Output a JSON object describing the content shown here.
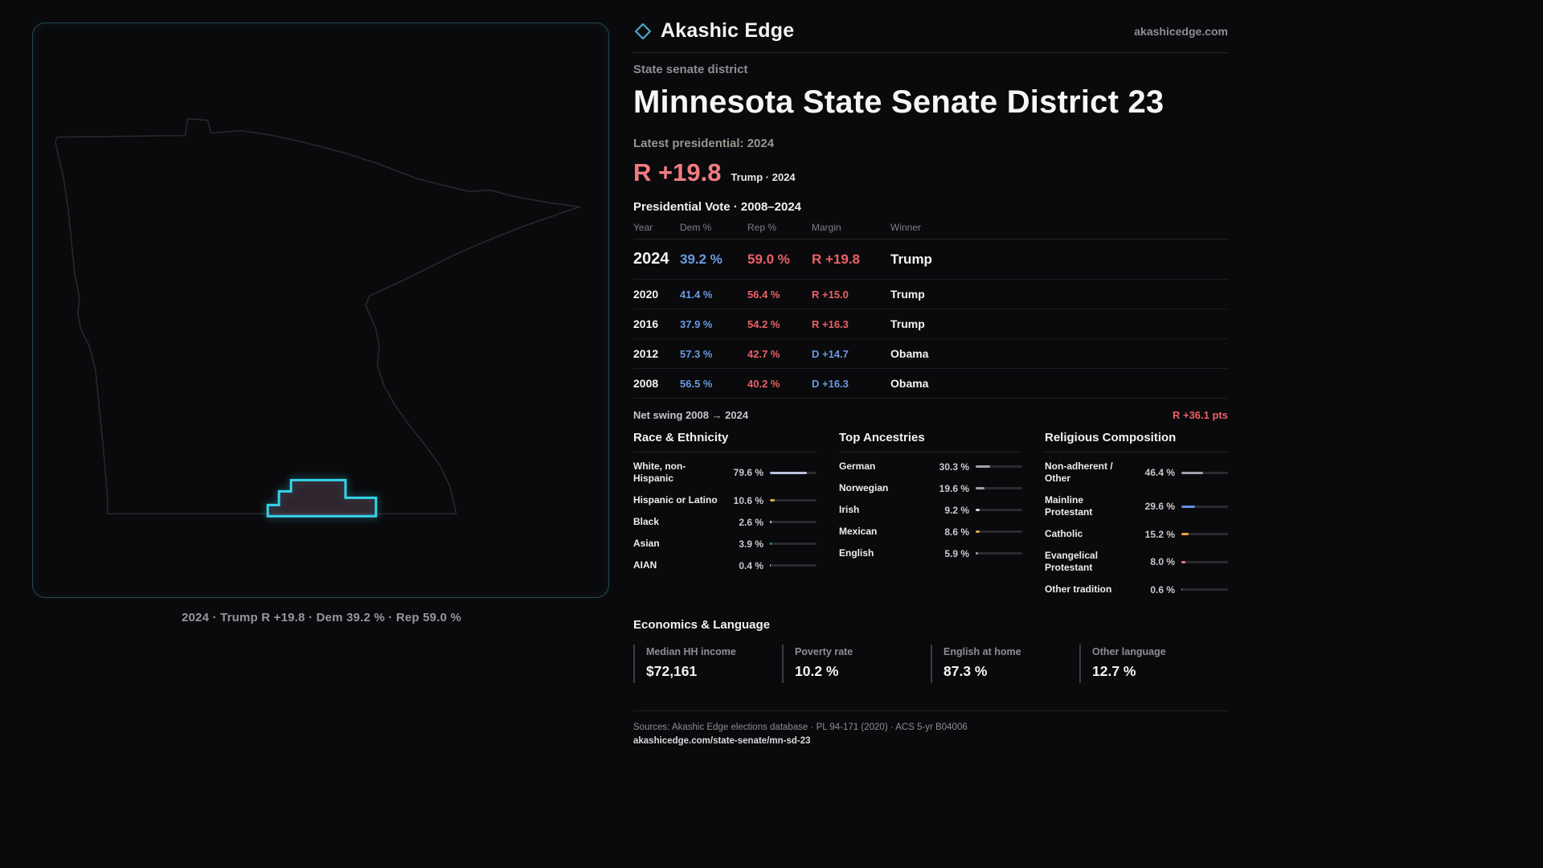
{
  "header": {
    "brand": "Akashic Edge",
    "site": "akashicedge.com"
  },
  "map": {
    "caption": "2024 · Trump R +19.8 · Dem 39.2 % · Rep 59.0 %"
  },
  "overview": {
    "kicker": "State senate district",
    "title": "Minnesota State Senate District 23",
    "latest_label": "Latest presidential: 2024",
    "margin_big": "R +19.8",
    "margin_sub": "Trump · 2024",
    "table_title": "Presidential Vote · 2008–2024"
  },
  "vote_table": {
    "headers": [
      "Year",
      "Dem %",
      "Rep %",
      "Margin",
      "Winner"
    ],
    "rows": [
      {
        "year": "2024",
        "dem": "39.2 %",
        "rep": "59.0 %",
        "margin": "R +19.8",
        "margin_party": "R",
        "winner": "Trump",
        "emphasis": true
      },
      {
        "year": "2020",
        "dem": "41.4 %",
        "rep": "56.4 %",
        "margin": "R +15.0",
        "margin_party": "R",
        "winner": "Trump",
        "emphasis": false
      },
      {
        "year": "2016",
        "dem": "37.9 %",
        "rep": "54.2 %",
        "margin": "R +16.3",
        "margin_party": "R",
        "winner": "Trump",
        "emphasis": false
      },
      {
        "year": "2012",
        "dem": "57.3 %",
        "rep": "42.7 %",
        "margin": "D +14.7",
        "margin_party": "D",
        "winner": "Obama",
        "emphasis": false
      },
      {
        "year": "2008",
        "dem": "56.5 %",
        "rep": "40.2 %",
        "margin": "D +16.3",
        "margin_party": "D",
        "winner": "Obama",
        "emphasis": false
      }
    ]
  },
  "swing": {
    "label": "Net swing 2008 → 2024",
    "value": "R +36.1 pts"
  },
  "demographics": {
    "race": {
      "title": "Race & Ethnicity",
      "rows": [
        {
          "label": "White, non-Hispanic",
          "value": "79.6 %",
          "pct": 79.6,
          "color": "#b9c3da"
        },
        {
          "label": "Hispanic or Latino",
          "value": "10.6 %",
          "pct": 10.6,
          "color": "#e5a83c"
        },
        {
          "label": "Black",
          "value": "2.6 %",
          "pct": 2.6,
          "color": "#e0e0e6"
        },
        {
          "label": "Asian",
          "value": "3.9 %",
          "pct": 3.9,
          "color": "#35b98a"
        },
        {
          "label": "AIAN",
          "value": "0.4 %",
          "pct": 0.4,
          "color": "#e0e0e6"
        }
      ]
    },
    "ancestries": {
      "title": "Top Ancestries",
      "rows": [
        {
          "label": "German",
          "value": "30.3 %",
          "pct": 30.3,
          "color": "#9fa3ad"
        },
        {
          "label": "Norwegian",
          "value": "19.6 %",
          "pct": 19.6,
          "color": "#9fa3ad"
        },
        {
          "label": "Irish",
          "value": "9.2 %",
          "pct": 9.2,
          "color": "#d7d7dd"
        },
        {
          "label": "Mexican",
          "value": "8.6 %",
          "pct": 8.6,
          "color": "#e5a83c"
        },
        {
          "label": "English",
          "value": "5.9 %",
          "pct": 5.9,
          "color": "#9fa3ad"
        }
      ]
    },
    "religion": {
      "title": "Religious Composition",
      "rows": [
        {
          "label": "Non-adherent / Other",
          "value": "46.4 %",
          "pct": 46.4,
          "color": "#9fa3ad"
        },
        {
          "label": "Mainline Protestant",
          "value": "29.6 %",
          "pct": 29.6,
          "color": "#5f8fe0"
        },
        {
          "label": "Catholic",
          "value": "15.2 %",
          "pct": 15.2,
          "color": "#e5a83c"
        },
        {
          "label": "Evangelical Protestant",
          "value": "8.0 %",
          "pct": 8.0,
          "color": "#e87a8b"
        },
        {
          "label": "Other tradition",
          "value": "0.6 %",
          "pct": 0.6,
          "color": "#9fa3ad"
        }
      ]
    }
  },
  "economics": {
    "title": "Economics & Language",
    "stats": [
      {
        "label": "Median HH income",
        "value": "$72,161"
      },
      {
        "label": "Poverty rate",
        "value": "10.2 %"
      },
      {
        "label": "English at home",
        "value": "87.3 %"
      },
      {
        "label": "Other language",
        "value": "12.7 %"
      }
    ]
  },
  "footer": {
    "sources": "Sources: Akashic Edge elections database · PL 94-171 (2020) · ACS 5-yr B04006",
    "permalink": "akashicedge.com/state-senate/mn-sd-23"
  },
  "colors": {
    "accent_red": "#ef5f66",
    "accent_blue": "#6b9be0",
    "accent_cyan": "#35d4ea"
  }
}
